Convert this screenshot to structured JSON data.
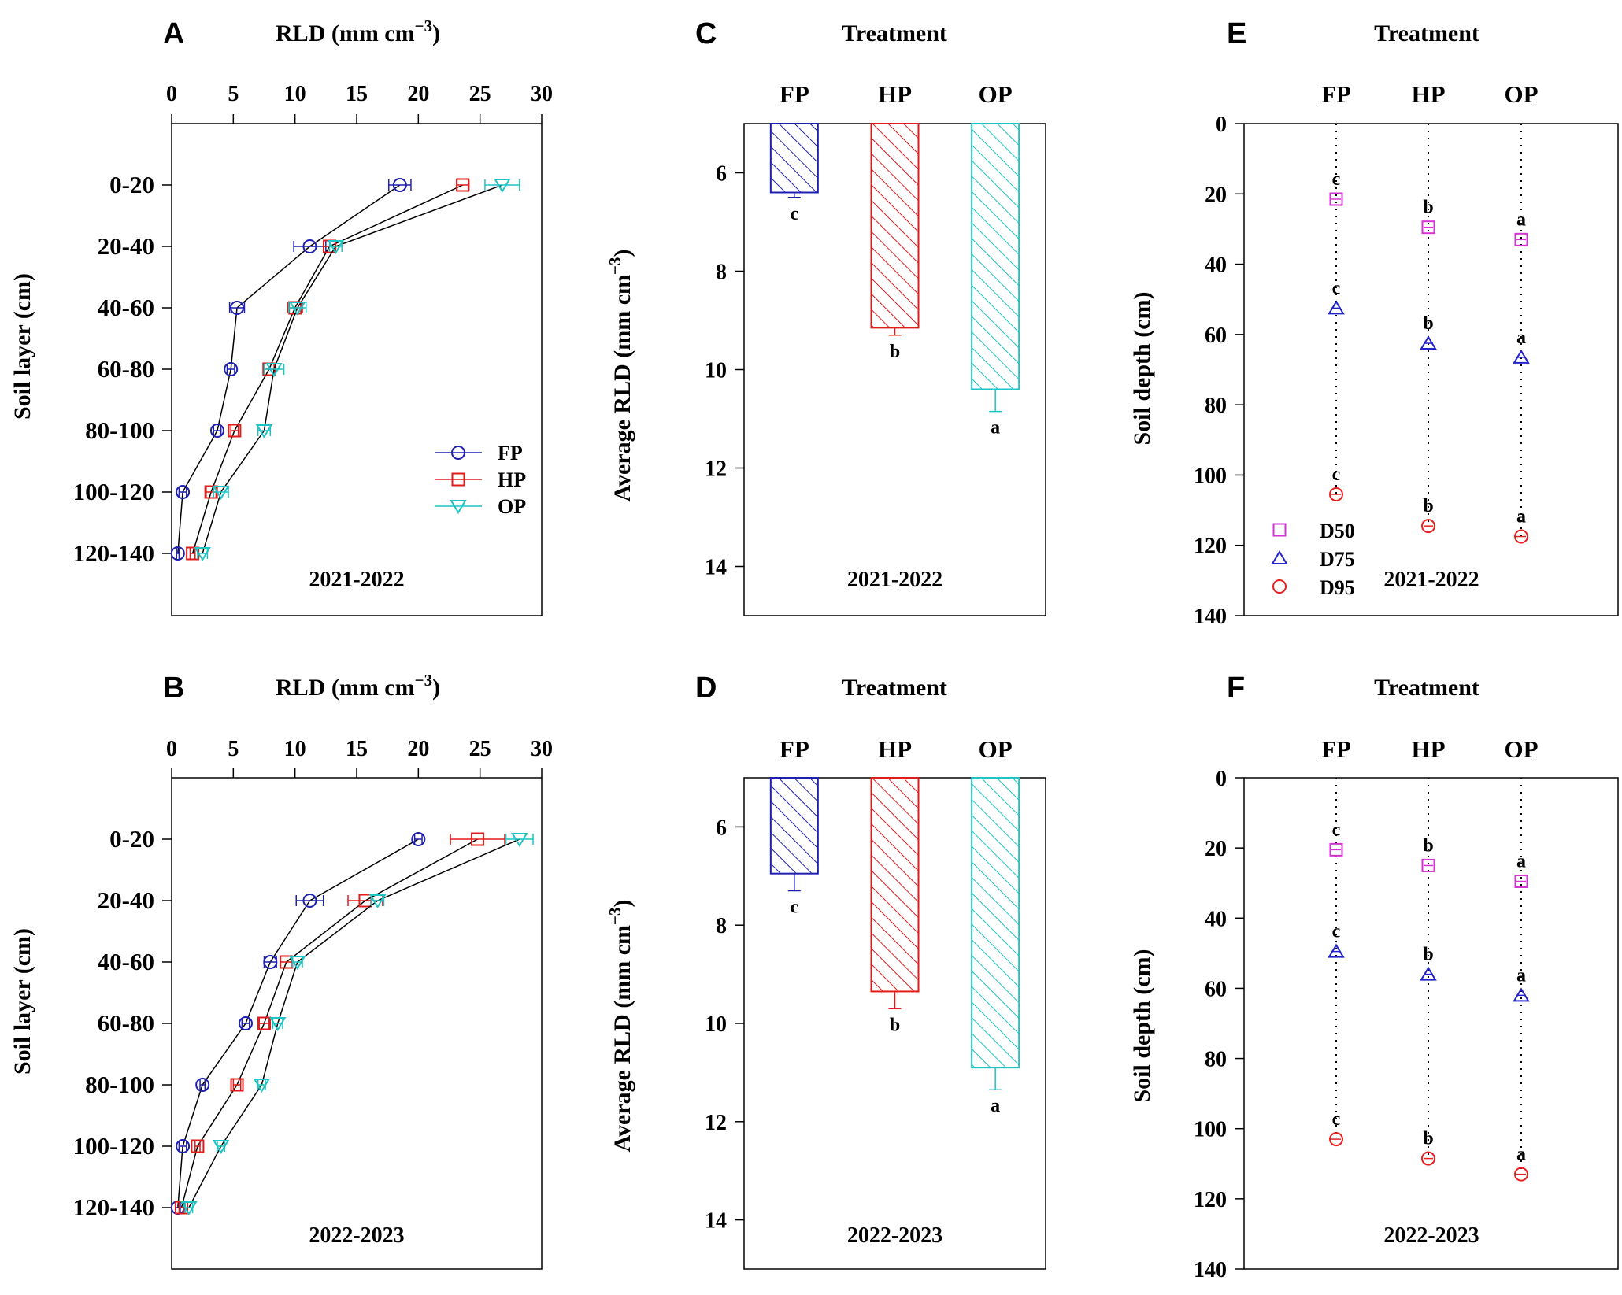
{
  "figure": {
    "colors": {
      "FP": "#1f1fb0",
      "HP": "#e01b1b",
      "OP": "#1ec4c4",
      "D50": "#d633d6",
      "D75": "#2323cc",
      "D95": "#e82020"
    },
    "chart_data": [
      {
        "id": "A",
        "letter": "A",
        "type": "line",
        "title": "RLD (mm cm",
        "title_sup": "−3",
        "title_end": ")",
        "xlabel": "RLD (mm cm−3)",
        "ylabel": "Soil layer (cm)",
        "xlim": [
          0,
          30
        ],
        "xticks": [
          0,
          5,
          10,
          15,
          20,
          25,
          30
        ],
        "categories": [
          "0-20",
          "20-40",
          "40-60",
          "60-80",
          "80-100",
          "100-120",
          "120-140"
        ],
        "year": "2021-2022",
        "legend": [
          "FP",
          "HP",
          "OP"
        ],
        "series": [
          {
            "name": "FP",
            "marker": "circle",
            "values": [
              18.5,
              11.2,
              5.3,
              4.8,
              3.7,
              0.9,
              0.5
            ],
            "errors": [
              0.9,
              1.3,
              0.6,
              0.3,
              0.3,
              0.3,
              0.1
            ]
          },
          {
            "name": "HP",
            "marker": "square",
            "values": [
              23.6,
              12.8,
              10.0,
              7.9,
              5.1,
              3.2,
              1.7
            ],
            "errors": [
              0.5,
              0.5,
              0.6,
              0.4,
              0.3,
              0.4,
              0.2
            ]
          },
          {
            "name": "OP",
            "marker": "triangle-down",
            "values": [
              26.8,
              13.3,
              10.2,
              8.3,
              7.5,
              4.0,
              2.5
            ],
            "errors": [
              1.4,
              0.5,
              0.7,
              0.8,
              0.5,
              0.6,
              0.4
            ]
          }
        ]
      },
      {
        "id": "B",
        "letter": "B",
        "type": "line",
        "title": "RLD (mm cm",
        "title_sup": "−3",
        "title_end": ")",
        "xlabel": "RLD (mm cm−3)",
        "ylabel": "Soil layer (cm)",
        "xlim": [
          0,
          30
        ],
        "xticks": [
          0,
          5,
          10,
          15,
          20,
          25,
          30
        ],
        "categories": [
          "0-20",
          "20-40",
          "40-60",
          "60-80",
          "80-100",
          "100-120",
          "120-140"
        ],
        "year": "2022-2023",
        "series": [
          {
            "name": "FP",
            "marker": "circle",
            "values": [
              20.0,
              11.2,
              8.0,
              6.0,
              2.5,
              0.9,
              0.5
            ],
            "errors": [
              0.3,
              1.1,
              0.5,
              0.3,
              0.2,
              0.3,
              0.2
            ]
          },
          {
            "name": "HP",
            "marker": "square",
            "values": [
              24.8,
              15.7,
              9.3,
              7.5,
              5.3,
              2.1,
              0.8
            ],
            "errors": [
              2.2,
              1.4,
              0.5,
              0.4,
              0.3,
              0.2,
              0.2
            ]
          },
          {
            "name": "OP",
            "marker": "triangle-down",
            "values": [
              28.2,
              16.7,
              10.2,
              8.6,
              7.3,
              4.0,
              1.4
            ],
            "errors": [
              1.1,
              0.5,
              0.4,
              0.4,
              0.3,
              0.3,
              0.3
            ]
          }
        ]
      },
      {
        "id": "C",
        "letter": "C",
        "type": "bar",
        "title": "Treatment",
        "ylabel": "Average RLD (mm cm",
        "ylabel_sup": "−3",
        "ylabel_end": ")",
        "ylim": [
          5,
          15
        ],
        "yticks": [
          6,
          8,
          10,
          12,
          14
        ],
        "categories": [
          "FP",
          "HP",
          "OP"
        ],
        "values": [
          6.4,
          9.15,
          10.4
        ],
        "errors": [
          0.1,
          0.15,
          0.45
        ],
        "letters": [
          "c",
          "b",
          "a"
        ],
        "year": "2021-2022"
      },
      {
        "id": "D",
        "letter": "D",
        "type": "bar",
        "title": "Treatment",
        "ylabel": "Average RLD (mm cm",
        "ylabel_sup": "−3",
        "ylabel_end": ")",
        "ylim": [
          5,
          15
        ],
        "yticks": [
          6,
          8,
          10,
          12,
          14
        ],
        "categories": [
          "FP",
          "HP",
          "OP"
        ],
        "values": [
          6.95,
          9.35,
          10.9
        ],
        "errors": [
          0.35,
          0.35,
          0.45
        ],
        "letters": [
          "c",
          "b",
          "a"
        ],
        "year": "2022-2023"
      },
      {
        "id": "E",
        "letter": "E",
        "type": "scatter",
        "title": "Treatment",
        "ylabel": "Soil depth (cm)",
        "ylim": [
          0,
          140
        ],
        "yticks": [
          0,
          20,
          40,
          60,
          80,
          100,
          120,
          140
        ],
        "categories": [
          "FP",
          "HP",
          "OP"
        ],
        "year": "2021-2022",
        "legend": [
          "D50",
          "D75",
          "D95"
        ],
        "series": [
          {
            "name": "D50",
            "marker": "square",
            "values": [
              21.5,
              29.5,
              33.0
            ],
            "letters": [
              "c",
              "b",
              "a"
            ]
          },
          {
            "name": "D75",
            "marker": "triangle-up",
            "values": [
              52.5,
              62.5,
              66.5
            ],
            "letters": [
              "c",
              "b",
              "a"
            ]
          },
          {
            "name": "D95",
            "marker": "circle",
            "values": [
              105.5,
              114.5,
              117.5
            ],
            "letters": [
              "c",
              "b",
              "a"
            ]
          }
        ]
      },
      {
        "id": "F",
        "letter": "F",
        "type": "scatter",
        "title": "Treatment",
        "ylabel": "Soil depth (cm)",
        "ylim": [
          0,
          140
        ],
        "yticks": [
          0,
          20,
          40,
          60,
          80,
          100,
          120,
          140
        ],
        "categories": [
          "FP",
          "HP",
          "OP"
        ],
        "year": "2022-2023",
        "series": [
          {
            "name": "D50",
            "marker": "square",
            "values": [
              20.5,
              25.0,
              29.5
            ],
            "letters": [
              "c",
              "b",
              "a"
            ]
          },
          {
            "name": "D75",
            "marker": "triangle-up",
            "values": [
              49.5,
              56.0,
              62.0
            ],
            "letters": [
              "c",
              "b",
              "a"
            ]
          },
          {
            "name": "D95",
            "marker": "circle",
            "values": [
              103.0,
              108.5,
              113.0
            ],
            "letters": [
              "c",
              "b",
              "a"
            ]
          }
        ]
      }
    ]
  }
}
